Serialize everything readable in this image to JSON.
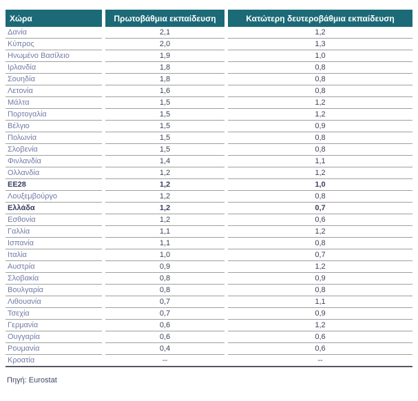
{
  "table": {
    "columns": [
      "Χώρα",
      "Πρωτοβάθμια εκπαίδευση",
      "Κατώτερη δευτεροβάθμια εκπαίδευση"
    ],
    "rows": [
      {
        "country": "Δανία",
        "primary": "2,1",
        "lower_secondary": "1,2",
        "bold": false
      },
      {
        "country": "Κύπρος",
        "primary": "2,0",
        "lower_secondary": "1,3",
        "bold": false
      },
      {
        "country": "Ηνωμένο Βασίλειο",
        "primary": "1,9",
        "lower_secondary": "1,0",
        "bold": false
      },
      {
        "country": "Ιρλανδία",
        "primary": "1,8",
        "lower_secondary": "0,8",
        "bold": false
      },
      {
        "country": "Σουηδία",
        "primary": "1,8",
        "lower_secondary": "0,8",
        "bold": false
      },
      {
        "country": "Λετονία",
        "primary": "1,6",
        "lower_secondary": "0,8",
        "bold": false
      },
      {
        "country": "Μάλτα",
        "primary": "1,5",
        "lower_secondary": "1,2",
        "bold": false
      },
      {
        "country": "Πορτογαλία",
        "primary": "1,5",
        "lower_secondary": "1,2",
        "bold": false
      },
      {
        "country": "Βέλγιο",
        "primary": "1,5",
        "lower_secondary": "0,9",
        "bold": false
      },
      {
        "country": "Πολωνία",
        "primary": "1,5",
        "lower_secondary": "0,8",
        "bold": false
      },
      {
        "country": "Σλοβενία",
        "primary": "1,5",
        "lower_secondary": "0,8",
        "bold": false
      },
      {
        "country": "Φινλανδία",
        "primary": "1,4",
        "lower_secondary": "1,1",
        "bold": false
      },
      {
        "country": "Ολλανδία",
        "primary": "1,2",
        "lower_secondary": "1,2",
        "bold": false
      },
      {
        "country": "ΕΕ28",
        "primary": "1,2",
        "lower_secondary": "1,0",
        "bold": true
      },
      {
        "country": "Λουξεμβούργο",
        "primary": "1,2",
        "lower_secondary": "0,8",
        "bold": false
      },
      {
        "country": "Ελλάδα",
        "primary": "1,2",
        "lower_secondary": "0,7",
        "bold": true
      },
      {
        "country": "Εσθονία",
        "primary": "1,2",
        "lower_secondary": "0,6",
        "bold": false
      },
      {
        "country": "Γαλλία",
        "primary": "1,1",
        "lower_secondary": "1,2",
        "bold": false
      },
      {
        "country": "Ισπανία",
        "primary": "1,1",
        "lower_secondary": "0,8",
        "bold": false
      },
      {
        "country": "Ιταλία",
        "primary": "1,0",
        "lower_secondary": "0,7",
        "bold": false
      },
      {
        "country": "Αυστρία",
        "primary": "0,9",
        "lower_secondary": "1,2",
        "bold": false
      },
      {
        "country": "Σλοβακία",
        "primary": "0,8",
        "lower_secondary": "0,9",
        "bold": false
      },
      {
        "country": "Βουλγαρία",
        "primary": "0,8",
        "lower_secondary": "0,8",
        "bold": false
      },
      {
        "country": "Λιθουανία",
        "primary": "0,7",
        "lower_secondary": "1,1",
        "bold": false
      },
      {
        "country": "Τσεχία",
        "primary": "0,7",
        "lower_secondary": "0,9",
        "bold": false
      },
      {
        "country": "Γερμανία",
        "primary": "0,6",
        "lower_secondary": "1,2",
        "bold": false
      },
      {
        "country": "Ουγγαρία",
        "primary": "0,6",
        "lower_secondary": "0,6",
        "bold": false
      },
      {
        "country": "Ρουμανία",
        "primary": "0,4",
        "lower_secondary": "0,6",
        "bold": false
      },
      {
        "country": "Κροατία",
        "primary": "--",
        "lower_secondary": "--",
        "bold": false
      }
    ]
  },
  "footer": {
    "source": "Πηγή: Eurostat"
  },
  "colors": {
    "header_bg": "#1c6a77",
    "header_text": "#ffffff",
    "country_text": "#717aa6",
    "value_text": "#3c4257",
    "bold_text": "#393f60",
    "row_line": "#9e9e9e",
    "table_bottom": "#55565e",
    "source_text": "#3d4468"
  }
}
